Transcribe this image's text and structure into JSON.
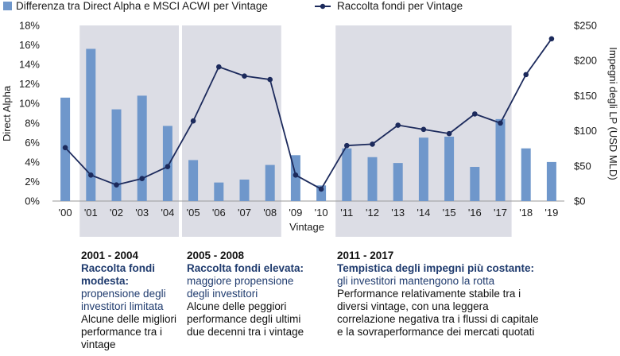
{
  "chart_data": {
    "type": "bar+line",
    "legend": [
      {
        "key": "bars",
        "label": "Differenza tra Direct Alpha e MSCI ACWI per Vintage",
        "marker": "square",
        "color": "#6f97cb"
      },
      {
        "key": "line",
        "label": "Raccolta fondi per Vintage",
        "marker": "line-dot",
        "color": "#1c2a5c"
      }
    ],
    "categories": [
      "'00",
      "'01",
      "'02",
      "'03",
      "'04",
      "'05",
      "'06",
      "'07",
      "'08",
      "'09",
      "'10",
      "'11",
      "'12",
      "'13",
      "'14",
      "'15",
      "'16",
      "'17",
      "'18",
      "'19"
    ],
    "xlabel": "Vintage",
    "y_left": {
      "label": "Direct Alpha",
      "ticks": [
        "0%",
        "2%",
        "4%",
        "6%",
        "8%",
        "10%",
        "12%",
        "14%",
        "16%",
        "18%"
      ],
      "ylim": [
        0,
        18
      ]
    },
    "y_right": {
      "label": "Impegni degli LP (USD MLD)",
      "ticks": [
        "$0",
        "$50",
        "$100",
        "$150",
        "$200",
        "$250"
      ],
      "ylim": [
        0,
        250
      ]
    },
    "bars": [
      10.6,
      15.6,
      9.4,
      10.8,
      7.7,
      4.2,
      1.9,
      2.2,
      3.7,
      4.7,
      1.6,
      5.4,
      4.5,
      3.9,
      6.5,
      6.6,
      3.5,
      8.4,
      5.4,
      4.0
    ],
    "line": [
      76,
      37,
      23,
      32,
      49,
      114,
      191,
      178,
      173,
      37,
      17,
      79,
      81,
      108,
      102,
      96,
      124,
      111,
      180,
      231
    ],
    "shaded_ranges": [
      [
        1,
        4
      ],
      [
        5,
        8
      ],
      [
        11,
        17
      ]
    ],
    "colors": {
      "bar": "#6f97cb",
      "line": "#1c2a5c",
      "shade": "#dcdde5"
    }
  },
  "periods": [
    {
      "range": "2001 - 2004",
      "headline": "Raccolta fondi modesta:",
      "sub": "propensione degli investitori limitata",
      "body": "Alcune delle migliori performance tra i vintage"
    },
    {
      "range": "2005 - 2008",
      "headline": "Raccolta fondi elevata:",
      "sub": "maggiore propensione degli investitori",
      "body": "Alcune delle peggiori performance degli ultimi due decenni tra i vintage"
    },
    {
      "range": "2011 - 2017",
      "headline": "Tempistica degli impegni più costante:",
      "sub": "gli investitori mantengono la rotta",
      "body": "Performance relativamente stabile tra i diversi vintage, con una leggera correlazione negativa tra i flussi di capitale e la sovraperformance dei mercati quotati"
    }
  ]
}
